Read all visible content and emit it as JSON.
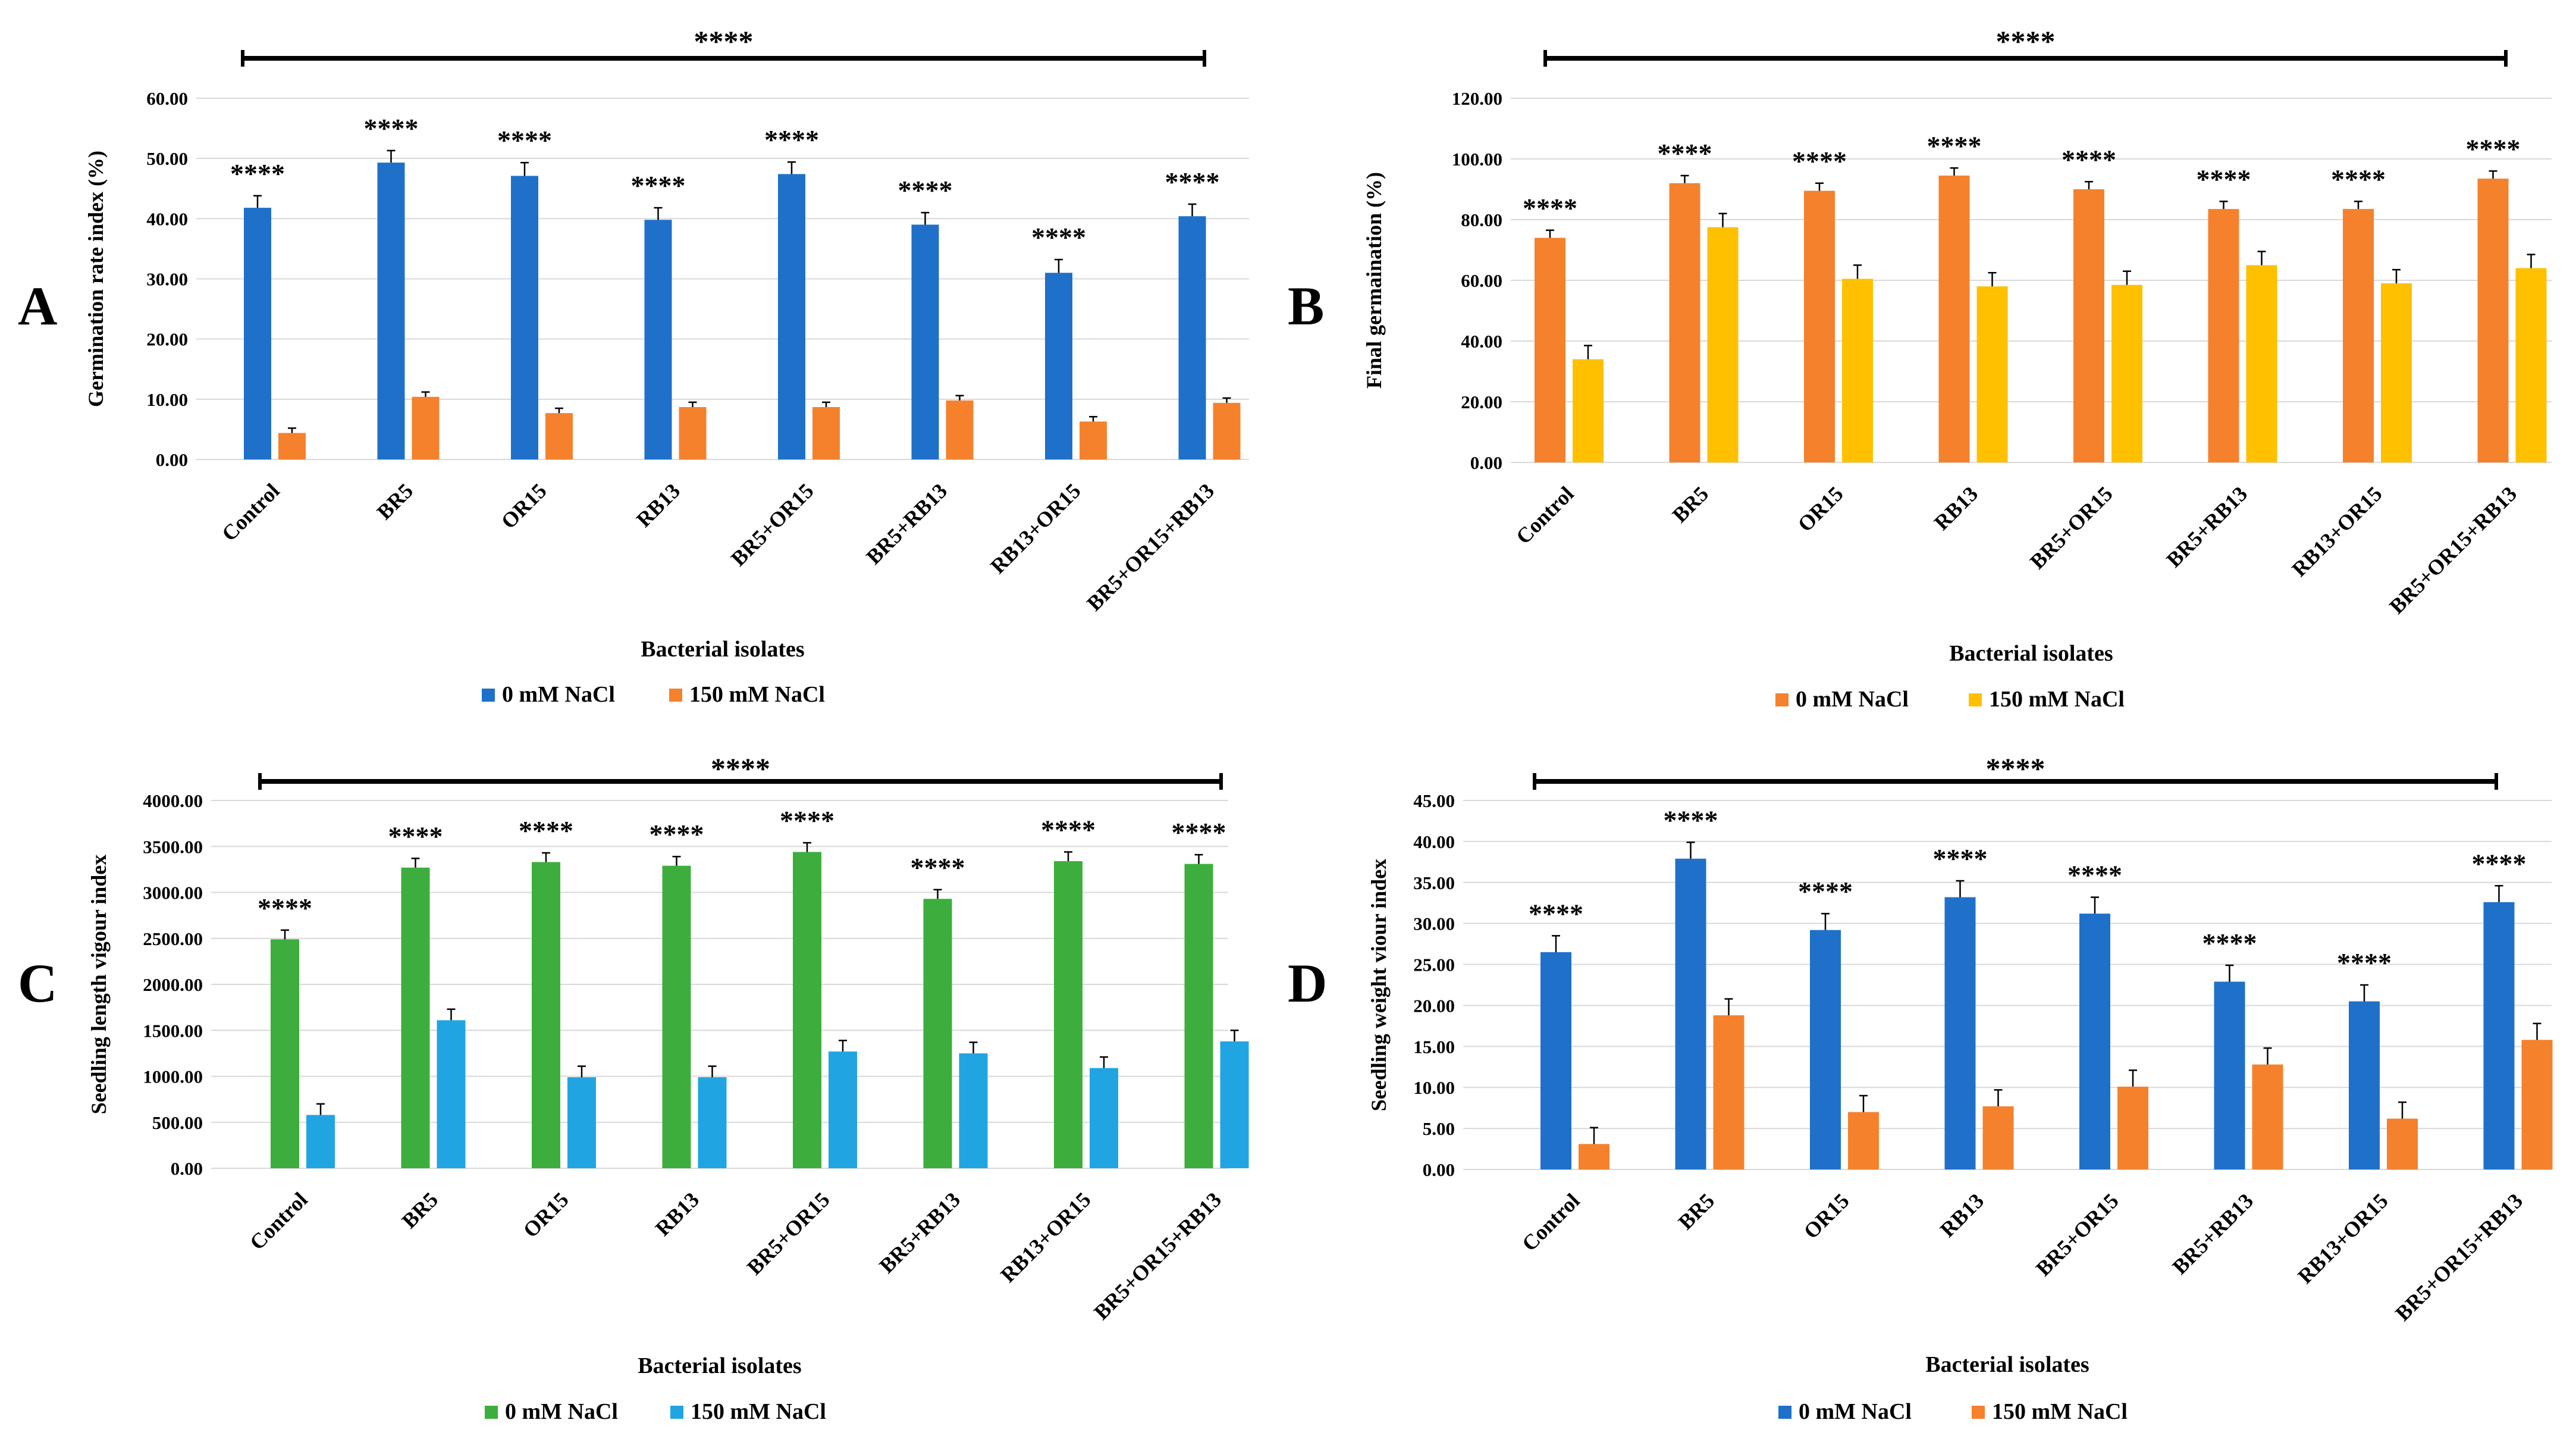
{
  "chart_data": [
    {
      "panel": "A",
      "type": "bar",
      "ylabel": "Germination rate index (%)",
      "xlabel": "Bacterial isolates",
      "categories": [
        "Control",
        "BR5",
        "OR15",
        "RB13",
        "BR5+OR15",
        "BR5+RB13",
        "RB13+OR15",
        "BR5+OR15+RB13"
      ],
      "ylim": [
        0,
        60
      ],
      "yticks": [
        "0.00",
        "10.00",
        "20.00",
        "30.00",
        "40.00",
        "50.00",
        "60.00"
      ],
      "series": [
        {
          "name": "0 mM NaCl",
          "color": "#1f70c9",
          "values": [
            41.8,
            49.3,
            47.1,
            39.8,
            47.4,
            39.0,
            31.0,
            40.4
          ],
          "errors": [
            2.0,
            2.0,
            2.2,
            2.0,
            2.0,
            2.0,
            2.2,
            2.0
          ]
        },
        {
          "name": "150 mM NaCl",
          "color": "#f5812d",
          "values": [
            4.4,
            10.4,
            7.7,
            8.7,
            8.7,
            9.8,
            6.3,
            9.4
          ],
          "errors": [
            0.8,
            0.8,
            0.8,
            0.8,
            0.8,
            0.8,
            0.8,
            0.8
          ]
        }
      ],
      "annotations": [
        "****",
        "****",
        "****",
        "****",
        "****",
        "****",
        "****",
        "****"
      ],
      "overall_annotation": "****"
    },
    {
      "panel": "B",
      "type": "bar",
      "ylabel": "Final germaination (%)",
      "xlabel": "Bacterial isolates",
      "categories": [
        "Control",
        "BR5",
        "OR15",
        "RB13",
        "BR5+OR15",
        "BR5+RB13",
        "RB13+OR15",
        "BR5+OR15+RB13"
      ],
      "ylim": [
        0,
        120
      ],
      "yticks": [
        "0.00",
        "20.00",
        "40.00",
        "60.00",
        "80.00",
        "100.00",
        "120.00"
      ],
      "series": [
        {
          "name": "0 mM NaCl",
          "color": "#f5812d",
          "values": [
            74.0,
            92.0,
            89.5,
            94.5,
            90.0,
            83.5,
            83.5,
            93.5
          ],
          "errors": [
            2.5,
            2.5,
            2.5,
            2.5,
            2.5,
            2.5,
            2.5,
            2.5
          ]
        },
        {
          "name": "150 mM NaCl",
          "color": "#ffc000",
          "values": [
            34.0,
            77.5,
            60.5,
            58.0,
            58.5,
            65.0,
            59.0,
            64.0
          ],
          "errors": [
            4.5,
            4.5,
            4.5,
            4.5,
            4.5,
            4.5,
            4.5,
            4.5
          ]
        }
      ],
      "annotations": [
        "****",
        "****",
        "****",
        "****",
        "****",
        "****",
        "****",
        "****"
      ],
      "overall_annotation": "****"
    },
    {
      "panel": "C",
      "type": "bar",
      "ylabel": "Seedling length vigour index",
      "xlabel": "Bacterial isolates",
      "categories": [
        "Control",
        "BR5",
        "OR15",
        "RB13",
        "BR5+OR15",
        "BR5+RB13",
        "RB13+OR15",
        "BR5+OR15+RB13"
      ],
      "ylim": [
        0,
        4000
      ],
      "yticks": [
        "0.00",
        "500.00",
        "1000.00",
        "1500.00",
        "2000.00",
        "2500.00",
        "3000.00",
        "3500.00",
        "4000.00"
      ],
      "series": [
        {
          "name": "0 mM NaCl",
          "color": "#3dae3d",
          "values": [
            2490,
            3270,
            3330,
            3290,
            3440,
            2930,
            3340,
            3310
          ],
          "errors": [
            100,
            100,
            100,
            100,
            100,
            100,
            100,
            100
          ]
        },
        {
          "name": "150 mM NaCl",
          "color": "#21a5e2",
          "values": [
            580,
            1610,
            990,
            990,
            1270,
            1250,
            1090,
            1380
          ],
          "errors": [
            120,
            120,
            120,
            120,
            120,
            120,
            120,
            120
          ]
        }
      ],
      "annotations": [
        "****",
        "****",
        "****",
        "****",
        "****",
        "****",
        "****",
        "****"
      ],
      "overall_annotation": "****"
    },
    {
      "panel": "D",
      "type": "bar",
      "ylabel": "Seedling weight viour index",
      "xlabel": "Bacterial isolates",
      "categories": [
        "Control",
        "BR5",
        "OR15",
        "RB13",
        "BR5+OR15",
        "BR5+RB13",
        "RB13+OR15",
        "BR5+OR15+RB13"
      ],
      "ylim": [
        0,
        45
      ],
      "yticks": [
        "0.00",
        "5.00",
        "10.00",
        "15.00",
        "20.00",
        "25.00",
        "30.00",
        "35.00",
        "40.00",
        "45.00"
      ],
      "series": [
        {
          "name": "0 mM NaCl",
          "color": "#1f70c9",
          "values": [
            26.5,
            37.9,
            29.2,
            33.2,
            31.2,
            22.9,
            20.5,
            32.6
          ],
          "errors": [
            2.0,
            2.0,
            2.0,
            2.0,
            2.0,
            2.0,
            2.0,
            2.0
          ]
        },
        {
          "name": "150 mM NaCl",
          "color": "#f5812d",
          "values": [
            3.1,
            18.8,
            7.0,
            7.7,
            10.1,
            12.8,
            6.2,
            15.8
          ],
          "errors": [
            2.0,
            2.0,
            2.0,
            2.0,
            2.0,
            2.0,
            2.0,
            2.0
          ]
        }
      ],
      "annotations": [
        "****",
        "****",
        "****",
        "****",
        "****",
        "****",
        "****",
        "****"
      ],
      "overall_annotation": "****"
    }
  ]
}
